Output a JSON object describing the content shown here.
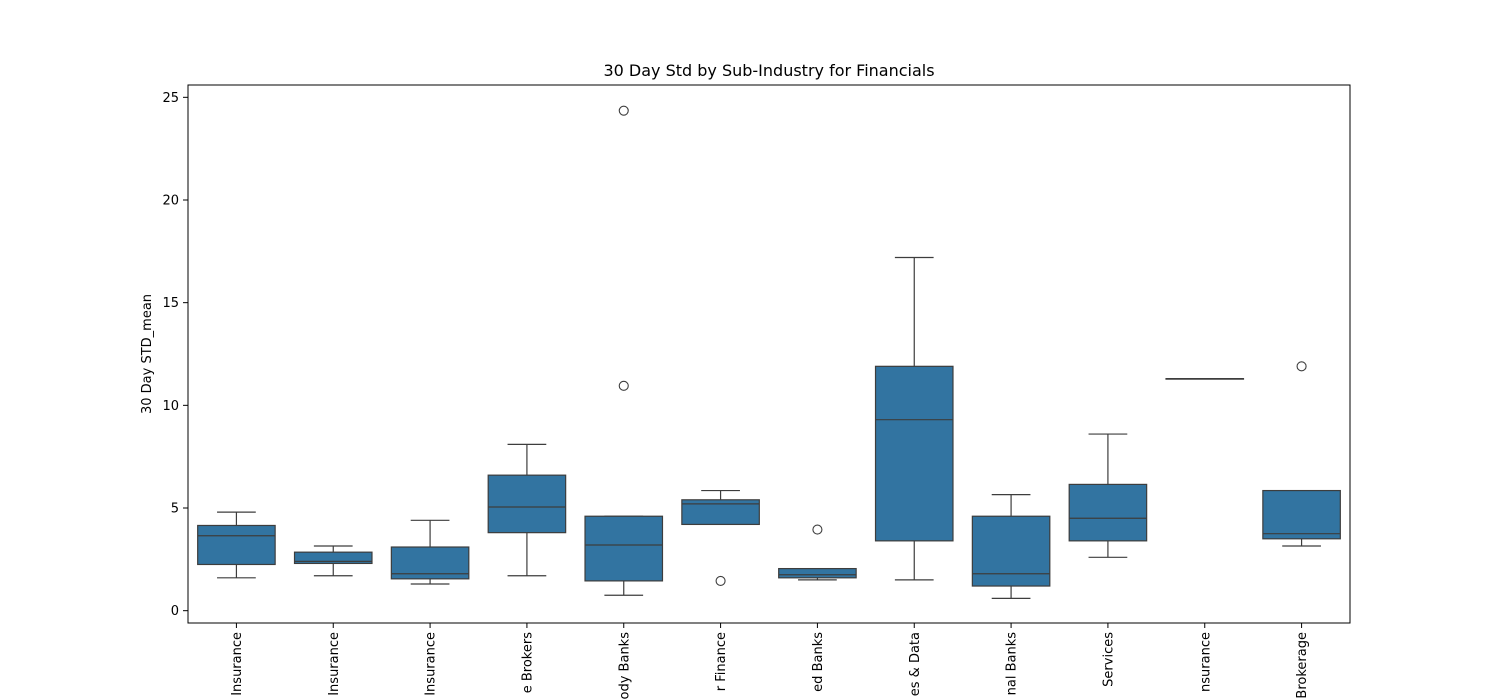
{
  "chart_data": {
    "type": "box",
    "title": "30 Day Std by Sub-Industry for Financials",
    "ylabel": "30 Day STD_mean",
    "xlabel": "",
    "ylim": [
      -0.6,
      25.6
    ],
    "yticks": [
      0,
      5,
      10,
      15,
      20,
      25
    ],
    "grid": false,
    "box_color": "#3274a1",
    "line_color": "#3d3d3d",
    "categories": [
      "Insurance",
      "Insurance",
      "Insurance",
      "e Brokers",
      "ody Banks",
      "r Finance",
      "ed Banks",
      "es & Data",
      "nal Banks",
      "Services",
      "nsurance",
      "Brokerage"
    ],
    "boxes": [
      {
        "whisker_low": 1.6,
        "q1": 2.25,
        "median": 3.65,
        "q3": 4.15,
        "whisker_high": 4.8,
        "outliers": []
      },
      {
        "whisker_low": 1.7,
        "q1": 2.3,
        "median": 2.4,
        "q3": 2.85,
        "whisker_high": 3.15,
        "outliers": []
      },
      {
        "whisker_low": 1.3,
        "q1": 1.55,
        "median": 1.8,
        "q3": 3.1,
        "whisker_high": 4.4,
        "outliers": []
      },
      {
        "whisker_low": 1.7,
        "q1": 3.8,
        "median": 5.05,
        "q3": 6.6,
        "whisker_high": 8.1,
        "outliers": []
      },
      {
        "whisker_low": 0.75,
        "q1": 1.45,
        "median": 3.2,
        "q3": 4.6,
        "whisker_high": 4.6,
        "outliers": [
          10.95,
          24.35
        ]
      },
      {
        "whisker_low": 4.2,
        "q1": 4.2,
        "median": 5.2,
        "q3": 5.4,
        "whisker_high": 5.85,
        "outliers": [
          1.45
        ]
      },
      {
        "whisker_low": 1.5,
        "q1": 1.6,
        "median": 1.75,
        "q3": 2.05,
        "whisker_high": 2.05,
        "outliers": [
          3.95
        ]
      },
      {
        "whisker_low": 1.5,
        "q1": 3.4,
        "median": 9.3,
        "q3": 11.9,
        "whisker_high": 17.2,
        "outliers": []
      },
      {
        "whisker_low": 0.6,
        "q1": 1.2,
        "median": 1.8,
        "q3": 4.6,
        "whisker_high": 5.65,
        "outliers": []
      },
      {
        "whisker_low": 2.6,
        "q1": 3.4,
        "median": 4.5,
        "q3": 6.15,
        "whisker_high": 8.6,
        "outliers": []
      },
      {
        "whisker_low": 11.3,
        "q1": 11.3,
        "median": 11.3,
        "q3": 11.3,
        "whisker_high": 11.3,
        "outliers": []
      },
      {
        "whisker_low": 3.15,
        "q1": 3.5,
        "median": 3.75,
        "q3": 5.85,
        "whisker_high": 5.85,
        "outliers": [
          11.9
        ]
      }
    ]
  }
}
